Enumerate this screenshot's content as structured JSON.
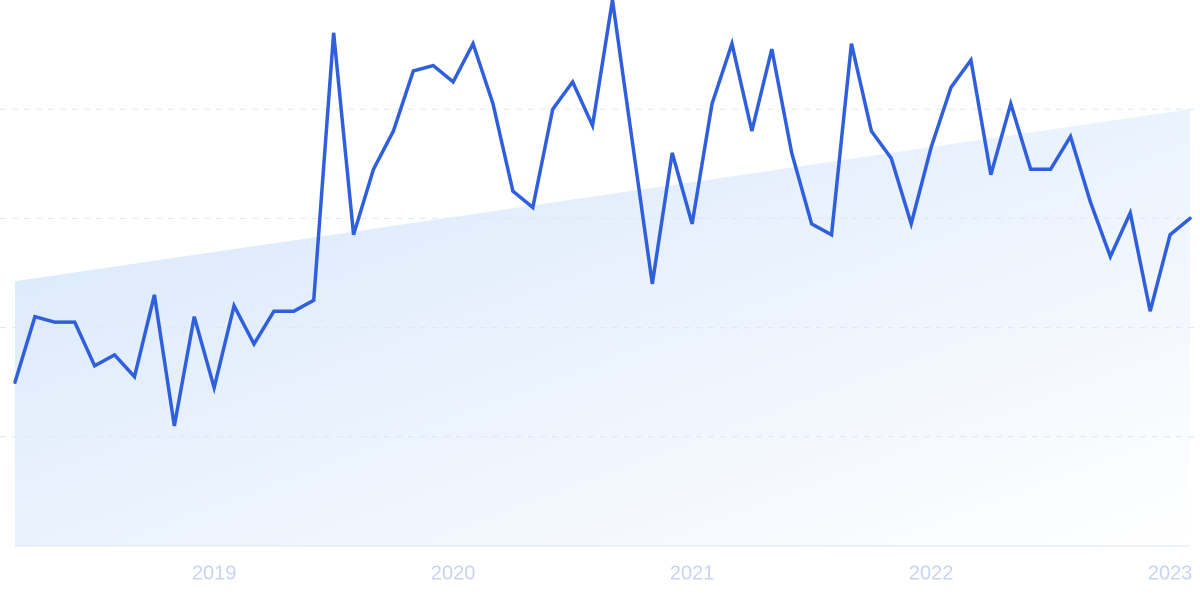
{
  "chart_data": {
    "type": "line",
    "categories": [
      null,
      null,
      null,
      null,
      null,
      null,
      null,
      null,
      null,
      null,
      "2019",
      null,
      null,
      null,
      null,
      null,
      null,
      null,
      null,
      null,
      null,
      null,
      "2020",
      null,
      null,
      null,
      null,
      null,
      null,
      null,
      null,
      null,
      null,
      null,
      "2021",
      null,
      null,
      null,
      null,
      null,
      null,
      null,
      null,
      null,
      null,
      null,
      "2022",
      null,
      null,
      null,
      null,
      null,
      null,
      null,
      null,
      null,
      null,
      null,
      "2023",
      null
    ],
    "series": [
      {
        "color": "#2f5fdc",
        "values": [
          30,
          42,
          41,
          41,
          33,
          35,
          31,
          46,
          22,
          42,
          29,
          44,
          37,
          43,
          43,
          45,
          94,
          57,
          69,
          76,
          87,
          88,
          85,
          92,
          81,
          65,
          62,
          80,
          85,
          77,
          100,
          74,
          48,
          72,
          59,
          81,
          92,
          76,
          91,
          72,
          59,
          57,
          92,
          76,
          71,
          59,
          73,
          84,
          89,
          68,
          81,
          69,
          69,
          75,
          63,
          53,
          61,
          43,
          57,
          60
        ]
      }
    ],
    "trend_values": [
      48.5,
      80
    ],
    "ylim": [
      0,
      100
    ],
    "yticks": [
      20,
      40,
      60,
      80
    ],
    "grid": true
  }
}
